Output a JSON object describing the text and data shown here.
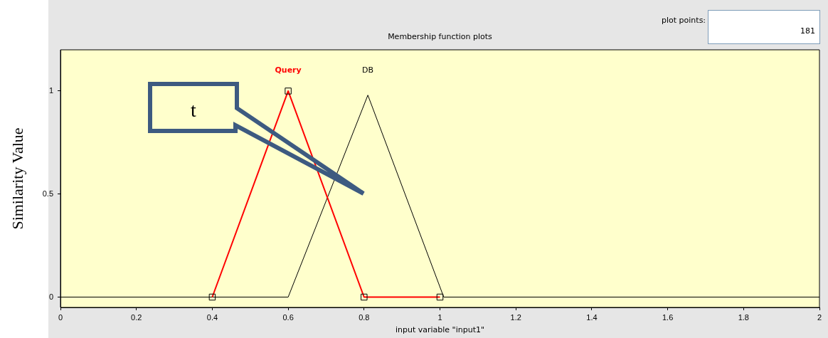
{
  "chart_data": {
    "type": "line",
    "title": "Membership function plots",
    "xlabel": "input variable \"input1\"",
    "ylabel": "Similarity Value",
    "x": [
      0,
      0.6,
      0.81,
      1.01,
      2
    ],
    "series": [
      {
        "name": "Query",
        "color": "#ff0000",
        "x": [
          0.4,
          0.6,
          0.8,
          1.0
        ],
        "values": [
          0,
          1,
          0,
          0
        ],
        "marker": "square"
      },
      {
        "name": "DB",
        "color": "#000000",
        "values": [
          0,
          0,
          0.98,
          0,
          0
        ],
        "marker": "none"
      }
    ],
    "xlim": [
      0,
      2
    ],
    "xticks": [
      0,
      0.2,
      0.4,
      0.6,
      0.8,
      1,
      1.2,
      1.4,
      1.6,
      1.8,
      2
    ],
    "ylim": [
      -0.05,
      1.2
    ],
    "yticks": [
      0,
      0.5,
      1
    ],
    "grid": false,
    "legend": false,
    "line_style": "solid",
    "annotations": [
      "plot points:",
      "181",
      "t"
    ]
  }
}
